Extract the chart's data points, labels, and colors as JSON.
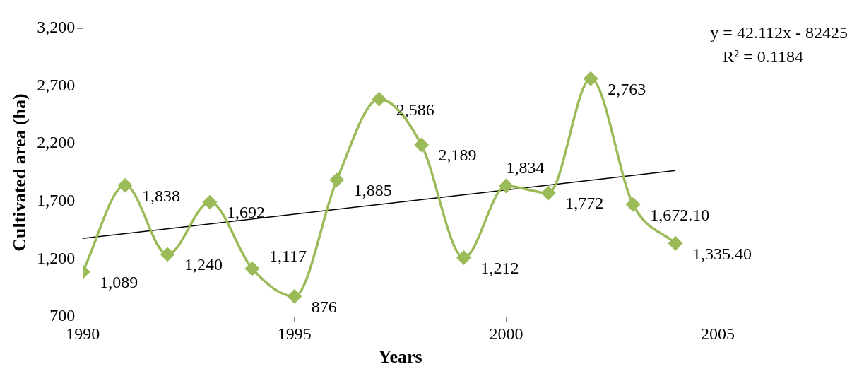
{
  "chart_data": {
    "type": "line",
    "xlabel": "Years",
    "ylabel": "Cultivated area (ha)",
    "x": [
      1990,
      1991,
      1992,
      1993,
      1994,
      1995,
      1996,
      1997,
      1998,
      1999,
      2000,
      2001,
      2002,
      2003,
      2004
    ],
    "series": [
      {
        "color": "#9bbb59",
        "marker": "diamond",
        "values": [
          1089,
          1838,
          1240,
          1692,
          1117,
          876,
          1885,
          2586,
          2189,
          1212,
          1834,
          1772,
          2763,
          1672.1,
          1335.4
        ],
        "value_labels": [
          "1,089",
          "1,838",
          "1,240",
          "1,692",
          "1,117",
          "876",
          "1,885",
          "2,586",
          "2,189",
          "1,212",
          "1,834",
          "1,772",
          "2,763",
          "1,672.10",
          "1,335.40"
        ]
      },
      {
        "type": "line",
        "color": "#000000",
        "marker": "none",
        "x": [
          1990,
          2004
        ],
        "values": [
          1378,
          1967
        ]
      }
    ],
    "xlim": [
      1990,
      2005
    ],
    "xticks": [
      1990,
      1995,
      2000,
      2005
    ],
    "ylim": [
      700,
      3200
    ],
    "yticks": [
      {
        "value": 700,
        "label": "700"
      },
      {
        "value": 1200,
        "label": "1,200"
      },
      {
        "value": 1700,
        "label": "1,700"
      },
      {
        "value": 2200,
        "label": "2,200"
      },
      {
        "value": 2700,
        "label": "2,700"
      },
      {
        "value": 3200,
        "label": "3,200"
      }
    ],
    "annotations": [
      "y = 42.112x - 82425",
      "R² = 0.1184"
    ],
    "grid": false,
    "legend": false
  }
}
